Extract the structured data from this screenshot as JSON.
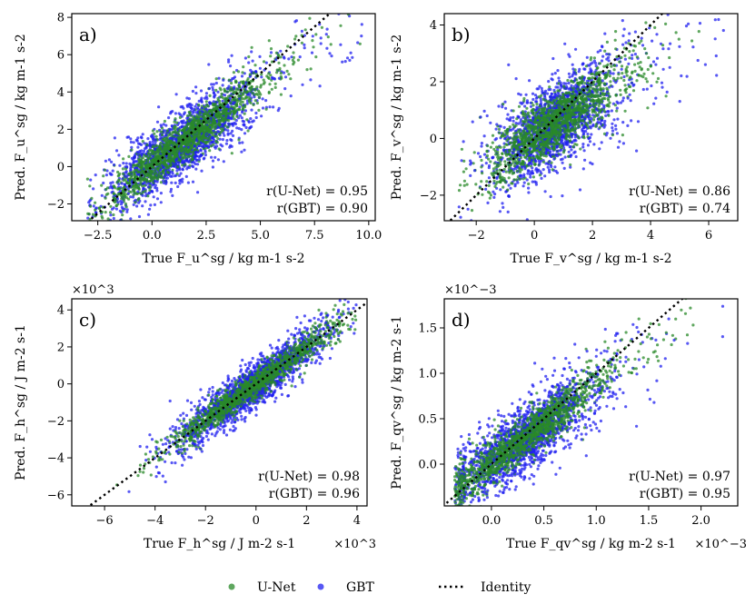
{
  "chart_data": [
    {
      "type": "scatter",
      "panel_label": "a)",
      "xlabel": "True F_u^sg / kg m-1 s-2",
      "ylabel": "Pred. F_u^sg / kg m-1 s-2",
      "xlim": [
        -3.7,
        10.3
      ],
      "ylim": [
        -2.9,
        8.2
      ],
      "xticks": [
        -2.5,
        0.0,
        2.5,
        5.0,
        7.5,
        10.0
      ],
      "xtick_labels": [
        "−2.5",
        "0.0",
        "2.5",
        "5.0",
        "7.5",
        "10.0"
      ],
      "yticks": [
        -2,
        0,
        2,
        4,
        6,
        8
      ],
      "ytick_labels": [
        "−2",
        "0",
        "2",
        "4",
        "6",
        "8"
      ],
      "multiplier_x": "",
      "multiplier_y": "",
      "identity_line": true,
      "annotations": [
        "r(U-Net) = 0.95",
        "r(GBT) = 0.90"
      ],
      "series": [
        {
          "name": "U-Net",
          "r": 0.95
        },
        {
          "name": "GBT",
          "r": 0.9
        }
      ]
    },
    {
      "type": "scatter",
      "panel_label": "b)",
      "xlabel": "True F_v^sg / kg m-1 s-2",
      "ylabel": "Pred. F_v^sg / kg m-1 s-2",
      "xlim": [
        -3.1,
        7.0
      ],
      "ylim": [
        -2.9,
        4.4
      ],
      "xticks": [
        -2,
        0,
        2,
        4,
        6
      ],
      "xtick_labels": [
        "−2",
        "0",
        "2",
        "4",
        "6"
      ],
      "yticks": [
        -2,
        0,
        2,
        4
      ],
      "ytick_labels": [
        "−2",
        "0",
        "2",
        "4"
      ],
      "multiplier_x": "",
      "multiplier_y": "",
      "identity_line": true,
      "annotations": [
        "r(U-Net) = 0.86",
        "r(GBT) = 0.74"
      ],
      "series": [
        {
          "name": "U-Net",
          "r": 0.86
        },
        {
          "name": "GBT",
          "r": 0.74
        }
      ]
    },
    {
      "type": "scatter",
      "panel_label": "c)",
      "xlabel": "True F_h^sg / J m-2 s-1",
      "ylabel": "Pred. F_h^sg / J m-2 s-1",
      "xlim": [
        -7.3,
        4.4
      ],
      "ylim": [
        -6.6,
        4.6
      ],
      "xticks": [
        -6,
        -4,
        -2,
        0,
        2,
        4
      ],
      "xtick_labels": [
        "−6",
        "−4",
        "−2",
        "0",
        "2",
        "4"
      ],
      "yticks": [
        -6,
        -4,
        -2,
        0,
        2,
        4
      ],
      "ytick_labels": [
        "−6",
        "−4",
        "−2",
        "0",
        "2",
        "4"
      ],
      "multiplier_x": "×10^3",
      "multiplier_y": "×10^3",
      "identity_line": true,
      "annotations": [
        "r(U-Net) = 0.98",
        "r(GBT) = 0.96"
      ],
      "series": [
        {
          "name": "U-Net",
          "r": 0.98
        },
        {
          "name": "GBT",
          "r": 0.96
        }
      ]
    },
    {
      "type": "scatter",
      "panel_label": "d)",
      "xlabel": "True F_qv^sg / kg m-2 s-1",
      "ylabel": "Pred. F_qv^sg / kg m-2 s-1",
      "xlim": [
        -0.45,
        2.35
      ],
      "ylim": [
        -0.46,
        1.82
      ],
      "xticks": [
        0.0,
        0.5,
        1.0,
        1.5,
        2.0
      ],
      "xtick_labels": [
        "0.0",
        "0.5",
        "1.0",
        "1.5",
        "2.0"
      ],
      "yticks": [
        0.0,
        0.5,
        1.0,
        1.5
      ],
      "ytick_labels": [
        "0.0",
        "0.5",
        "1.0",
        "1.5"
      ],
      "multiplier_x": "×10^−3",
      "multiplier_y": "×10^−3",
      "identity_line": true,
      "annotations": [
        "r(U-Net) = 0.97",
        "r(GBT) = 0.95"
      ],
      "series": [
        {
          "name": "U-Net",
          "r": 0.97
        },
        {
          "name": "GBT",
          "r": 0.95
        }
      ]
    }
  ],
  "legend": {
    "placement": "bottom-center",
    "items": [
      {
        "label": "U-Net",
        "marker": "dot",
        "color": "#2a8a2a"
      },
      {
        "label": "GBT",
        "marker": "dot",
        "color": "#2020f0"
      },
      {
        "label": "Identity",
        "marker": "dotted-line",
        "color": "#000000"
      }
    ]
  },
  "colors": {
    "unet": "#2a8a2a",
    "gbt": "#2020f0",
    "identity": "#000000"
  }
}
